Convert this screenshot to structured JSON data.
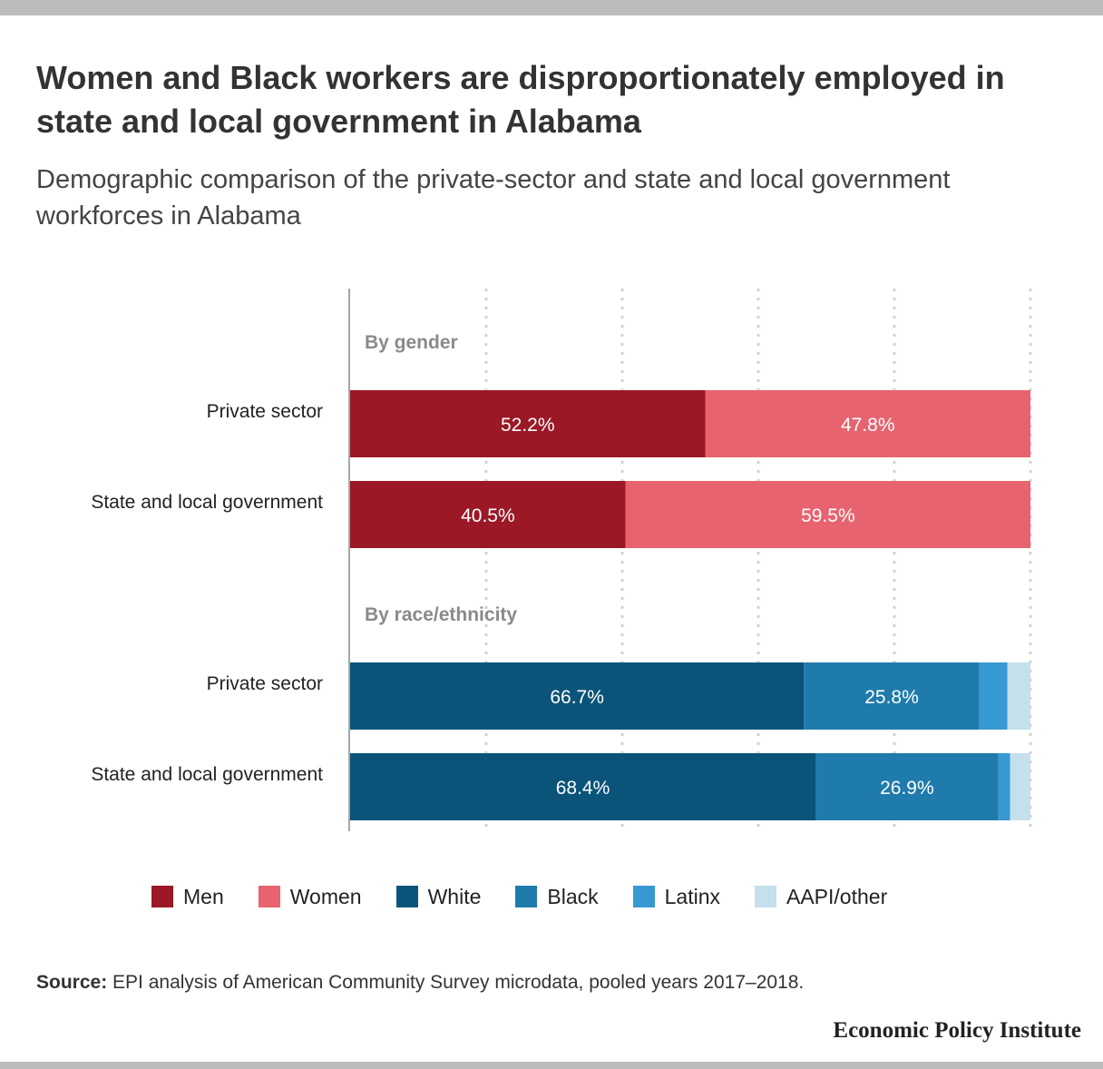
{
  "title": "Women and Black workers are disproportionately employed in state and local government in Alabama",
  "subtitle": "Demographic comparison of the private-sector and state and local government workforces in Alabama",
  "colors": {
    "Men": "#9b1826",
    "Women": "#e76370",
    "White": "#0b5479",
    "Black": "#1f7bab",
    "Latinx": "#3699d1",
    "AAPI/other": "#c5dfec"
  },
  "chart_data": {
    "type": "bar",
    "orientation": "horizontal",
    "stacked": true,
    "xlim": [
      0,
      100
    ],
    "grid": true,
    "legend_position": "bottom",
    "groups": [
      {
        "label": "By gender",
        "categories": [
          "Private sector",
          "State and local government"
        ],
        "series": [
          {
            "name": "Men",
            "values": [
              52.2,
              40.5
            ],
            "labels": [
              "52.2%",
              "40.5%"
            ]
          },
          {
            "name": "Women",
            "values": [
              47.8,
              59.5
            ],
            "labels": [
              "47.8%",
              "59.5%"
            ]
          }
        ]
      },
      {
        "label": "By race/ethnicity",
        "categories": [
          "Private sector",
          "State and local government"
        ],
        "series": [
          {
            "name": "White",
            "values": [
              66.7,
              68.4
            ],
            "labels": [
              "66.7%",
              "68.4%"
            ]
          },
          {
            "name": "Black",
            "values": [
              25.8,
              26.9
            ],
            "labels": [
              "25.8%",
              "26.9%"
            ]
          },
          {
            "name": "Latinx",
            "values": [
              4.1,
              1.7
            ],
            "labels": [
              "",
              ""
            ]
          },
          {
            "name": "AAPI/other",
            "values": [
              3.4,
              3.0
            ],
            "labels": [
              "",
              ""
            ]
          }
        ]
      }
    ]
  },
  "legend": [
    "Men",
    "Women",
    "White",
    "Black",
    "Latinx",
    "AAPI/other"
  ],
  "source": {
    "label": "Source:",
    "text": " EPI analysis of American Community Survey microdata, pooled years 2017–2018."
  },
  "brand": "Economic Policy Institute"
}
